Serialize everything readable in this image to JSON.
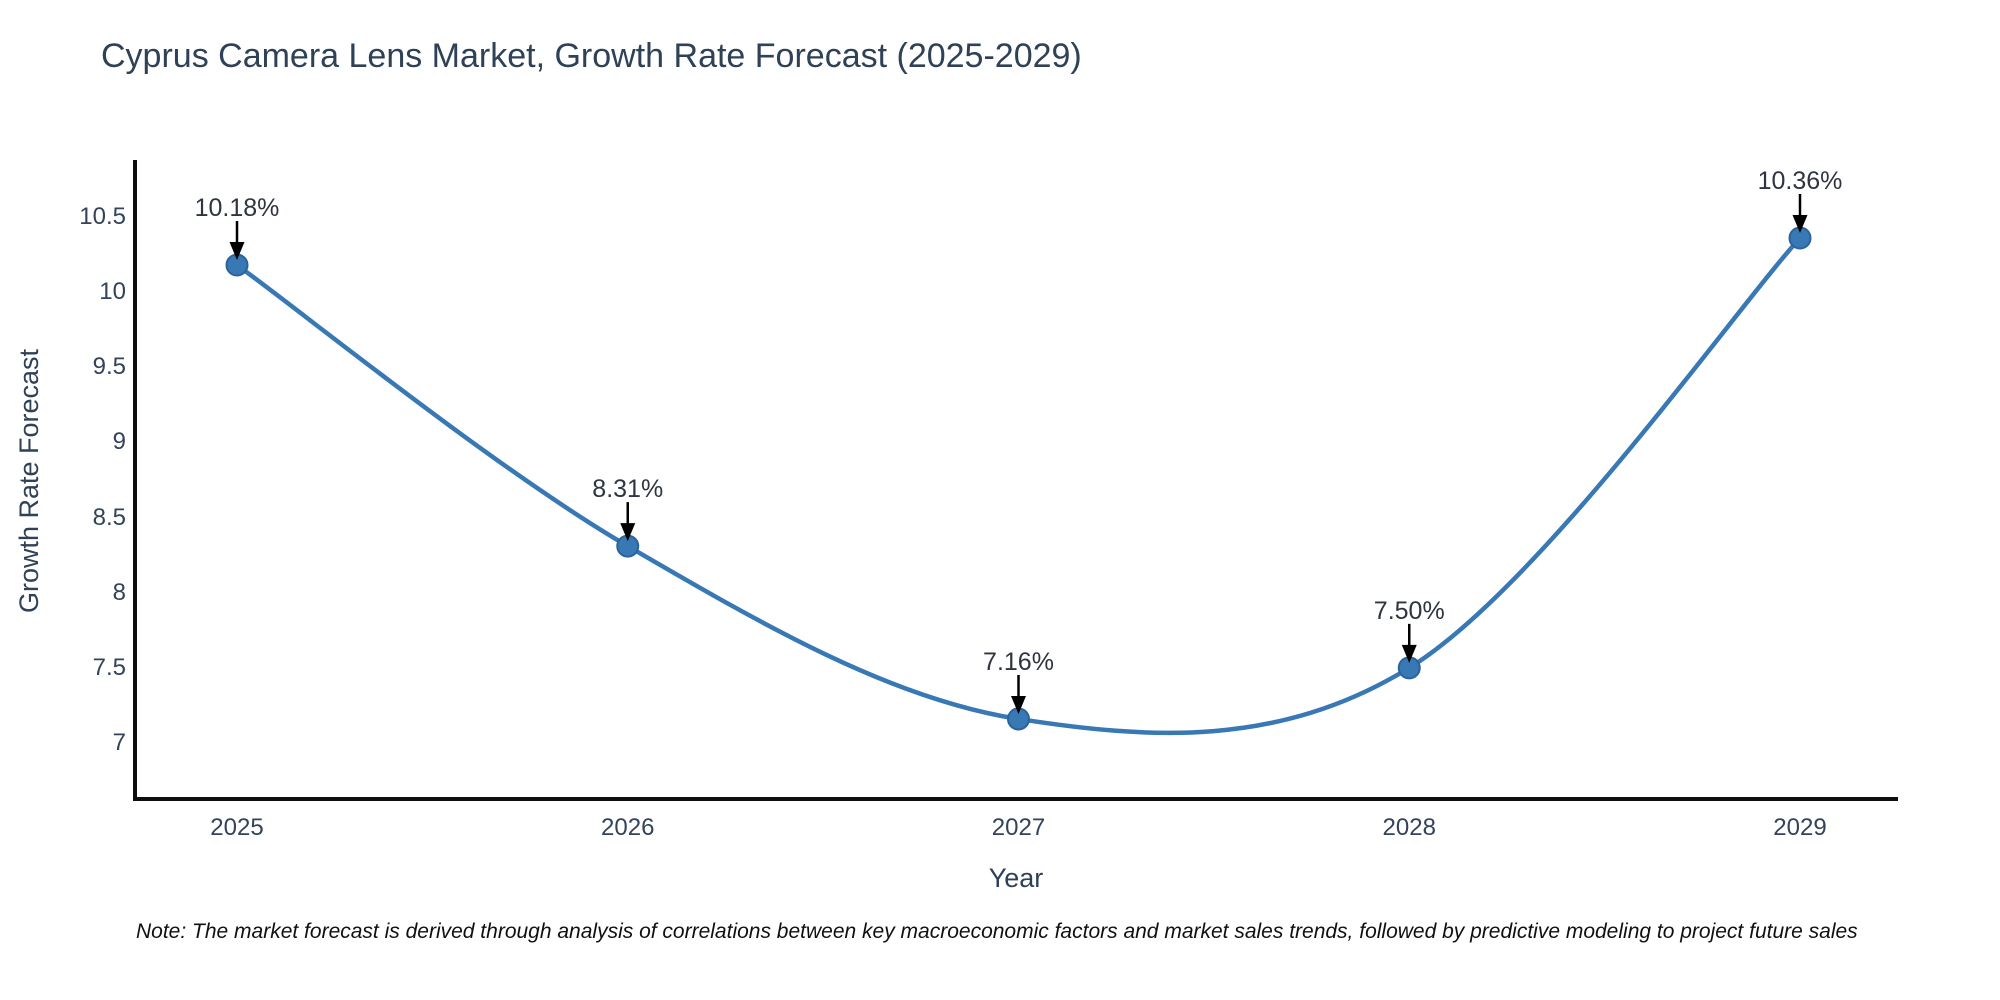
{
  "title": "Cyprus Camera Lens Market, Growth Rate Forecast (2025-2029)",
  "note": "Note: The market forecast is derived through analysis of correlations between key macroeconomic factors and market sales trends, followed by predictive modeling to project future sales",
  "chart_data": {
    "type": "line",
    "title": "Cyprus Camera Lens Market, Growth Rate Forecast (2025-2029)",
    "xlabel": "Year",
    "ylabel": "Growth Rate Forecast",
    "x": [
      2025,
      2026,
      2027,
      2028,
      2029
    ],
    "y": [
      10.18,
      8.31,
      7.16,
      7.5,
      10.36
    ],
    "point_labels": [
      "10.18%",
      "8.31%",
      "7.16%",
      "7.50%",
      "10.36%"
    ],
    "yticks": [
      7,
      7.5,
      8,
      8.5,
      9,
      9.5,
      10,
      10.5
    ],
    "ylim": [
      6.63,
      10.88
    ],
    "grid": false,
    "legend": "none",
    "smooth": true,
    "colors": {
      "line": "#3878b4",
      "marker_fill": "#3878b4",
      "marker_edge": "#2d6399",
      "annotation_arrow": "#000000",
      "axis_spine": "#0e0e0e",
      "title_text": "#2e4157",
      "tick_text": "#33435a"
    }
  }
}
